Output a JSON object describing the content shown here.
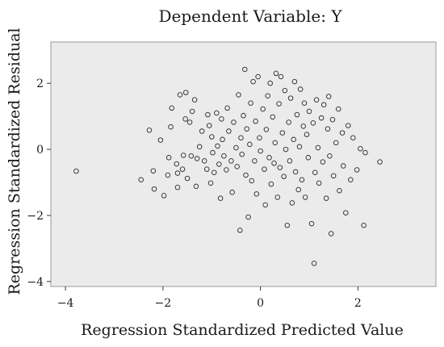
{
  "chart_data": {
    "type": "scatter",
    "title": "Dependent Variable: Y",
    "xlabel": "Regression Standardized Predicted Value",
    "ylabel": "Regression Standardized Residual",
    "xlim": [
      -4.3,
      3.6
    ],
    "ylim": [
      -4.15,
      3.25
    ],
    "xticks": [
      -4,
      -2,
      0,
      2
    ],
    "xtick_labels": [
      "−4",
      "−2",
      "0",
      "2"
    ],
    "yticks": [
      -4,
      -2,
      0,
      2
    ],
    "ytick_labels": [
      "−4",
      "−2",
      "0",
      "2"
    ],
    "grid": false,
    "background": "#ebebeb",
    "marker": "open-circle",
    "series": [
      {
        "values": [
          [
            -3.78,
            -0.66
          ],
          [
            -2.45,
            -0.92
          ],
          [
            -2.28,
            0.58
          ],
          [
            -2.2,
            -0.65
          ],
          [
            -2.18,
            -1.2
          ],
          [
            -2.05,
            0.28
          ],
          [
            -1.98,
            -1.4
          ],
          [
            -1.9,
            -0.78
          ],
          [
            -1.88,
            -0.25
          ],
          [
            -1.84,
            0.68
          ],
          [
            -1.82,
            1.25
          ],
          [
            -1.72,
            -0.44
          ],
          [
            -1.7,
            -0.72
          ],
          [
            -1.7,
            -1.15
          ],
          [
            -1.65,
            1.65
          ],
          [
            -1.6,
            -0.6
          ],
          [
            -1.58,
            -0.18
          ],
          [
            -1.54,
            0.92
          ],
          [
            -1.53,
            1.72
          ],
          [
            -1.5,
            -0.88
          ],
          [
            -1.45,
            0.82
          ],
          [
            -1.42,
            -0.2
          ],
          [
            -1.4,
            1.15
          ],
          [
            -1.35,
            1.5
          ],
          [
            -1.32,
            -1.12
          ],
          [
            -1.3,
            -0.28
          ],
          [
            -1.25,
            0.08
          ],
          [
            -1.2,
            0.55
          ],
          [
            -1.15,
            -0.35
          ],
          [
            -1.1,
            -0.6
          ],
          [
            -1.08,
            1.05
          ],
          [
            -1.05,
            0.72
          ],
          [
            -1.02,
            -1.02
          ],
          [
            -1.0,
            0.38
          ],
          [
            -0.98,
            -0.1
          ],
          [
            -0.95,
            -0.7
          ],
          [
            -0.9,
            1.1
          ],
          [
            -0.88,
            0.1
          ],
          [
            -0.85,
            -0.45
          ],
          [
            -0.82,
            -1.48
          ],
          [
            -0.8,
            0.92
          ],
          [
            -0.78,
            0.3
          ],
          [
            -0.75,
            -0.2
          ],
          [
            -0.7,
            -0.62
          ],
          [
            -0.68,
            1.25
          ],
          [
            -0.65,
            0.55
          ],
          [
            -0.6,
            -0.35
          ],
          [
            -0.58,
            -1.3
          ],
          [
            -0.55,
            0.82
          ],
          [
            -0.5,
            0.05
          ],
          [
            -0.48,
            -0.52
          ],
          [
            -0.45,
            1.65
          ],
          [
            -0.42,
            -2.45
          ],
          [
            -0.4,
            0.35
          ],
          [
            -0.38,
            -0.15
          ],
          [
            -0.35,
            1.02
          ],
          [
            -0.32,
            2.42
          ],
          [
            -0.3,
            -0.78
          ],
          [
            -0.28,
            0.62
          ],
          [
            -0.25,
            -2.05
          ],
          [
            -0.22,
            0.15
          ],
          [
            -0.2,
            1.4
          ],
          [
            -0.18,
            -0.95
          ],
          [
            -0.15,
            2.05
          ],
          [
            -0.12,
            -0.35
          ],
          [
            -0.1,
            0.85
          ],
          [
            -0.08,
            -1.35
          ],
          [
            -0.05,
            2.2
          ],
          [
            -0.02,
            0.35
          ],
          [
            0.0,
            -0.05
          ],
          [
            0.05,
            1.22
          ],
          [
            0.08,
            -0.6
          ],
          [
            0.1,
            -1.68
          ],
          [
            0.12,
            0.6
          ],
          [
            0.15,
            1.62
          ],
          [
            0.18,
            -0.25
          ],
          [
            0.2,
            2.0
          ],
          [
            0.22,
            -1.05
          ],
          [
            0.25,
            0.98
          ],
          [
            0.28,
            -0.42
          ],
          [
            0.3,
            0.2
          ],
          [
            0.32,
            2.3
          ],
          [
            0.35,
            -1.45
          ],
          [
            0.38,
            1.38
          ],
          [
            0.4,
            -0.55
          ],
          [
            0.42,
            2.2
          ],
          [
            0.45,
            0.5
          ],
          [
            0.48,
            -0.82
          ],
          [
            0.5,
            1.78
          ],
          [
            0.52,
            0.0
          ],
          [
            0.55,
            -2.3
          ],
          [
            0.58,
            0.82
          ],
          [
            0.6,
            -0.35
          ],
          [
            0.62,
            1.55
          ],
          [
            0.65,
            -1.62
          ],
          [
            0.68,
            0.3
          ],
          [
            0.7,
            2.05
          ],
          [
            0.72,
            -0.68
          ],
          [
            0.75,
            1.05
          ],
          [
            0.78,
            -1.22
          ],
          [
            0.8,
            0.08
          ],
          [
            0.82,
            1.82
          ],
          [
            0.85,
            -0.92
          ],
          [
            0.88,
            0.7
          ],
          [
            0.9,
            1.4
          ],
          [
            0.92,
            -1.45
          ],
          [
            0.95,
            0.45
          ],
          [
            0.98,
            -0.25
          ],
          [
            1.0,
            1.15
          ],
          [
            1.05,
            -2.25
          ],
          [
            1.08,
            0.8
          ],
          [
            1.1,
            -3.45
          ],
          [
            1.12,
            -0.7
          ],
          [
            1.15,
            1.5
          ],
          [
            1.18,
            0.05
          ],
          [
            1.2,
            -1.02
          ],
          [
            1.25,
            0.95
          ],
          [
            1.28,
            -0.38
          ],
          [
            1.3,
            1.35
          ],
          [
            1.35,
            -1.48
          ],
          [
            1.38,
            0.62
          ],
          [
            1.4,
            1.6
          ],
          [
            1.42,
            -0.2
          ],
          [
            1.45,
            -2.55
          ],
          [
            1.48,
            0.9
          ],
          [
            1.5,
            -0.8
          ],
          [
            1.55,
            0.2
          ],
          [
            1.6,
            1.22
          ],
          [
            1.62,
            -1.25
          ],
          [
            1.68,
            0.5
          ],
          [
            1.7,
            -0.5
          ],
          [
            1.75,
            -1.92
          ],
          [
            1.8,
            0.72
          ],
          [
            1.85,
            -0.92
          ],
          [
            1.9,
            0.35
          ],
          [
            1.98,
            -0.62
          ],
          [
            2.05,
            0.02
          ],
          [
            2.12,
            -2.3
          ],
          [
            2.15,
            -0.1
          ],
          [
            2.45,
            -0.38
          ]
        ]
      }
    ]
  }
}
